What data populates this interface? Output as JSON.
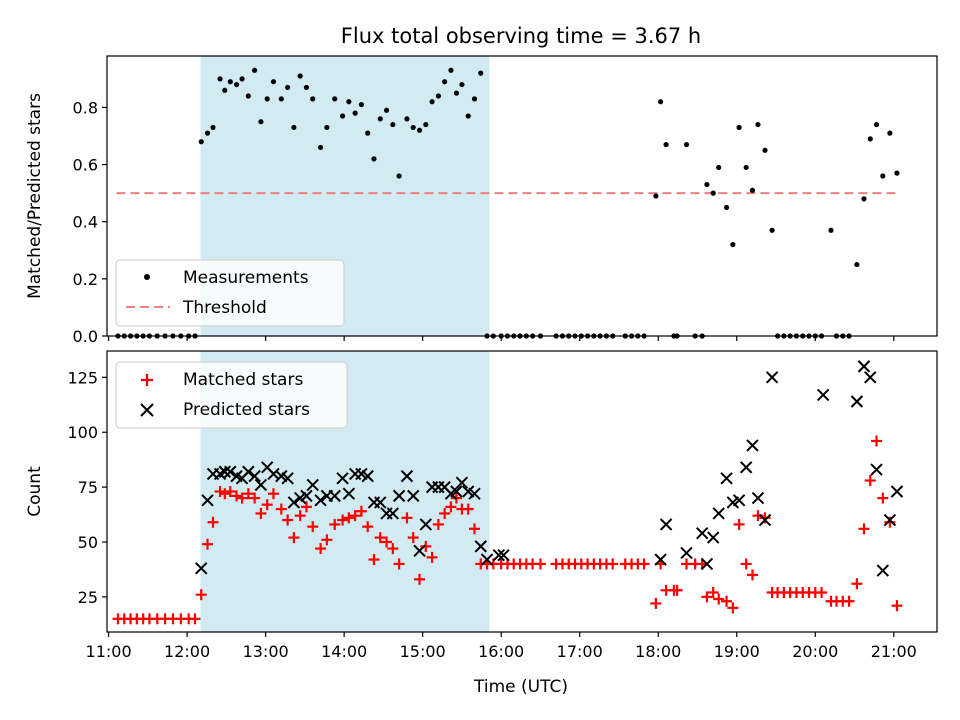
{
  "chart_data": [
    {
      "type": "scatter",
      "title": "Flux total observing time = 3.67 h",
      "xlabel": "",
      "ylabel": "Matched/Predicted stars",
      "x_unit": "hours UTC",
      "xlim": [
        10.98,
        21.55
      ],
      "ylim": [
        0,
        0.98
      ],
      "yticks": [
        0.0,
        0.2,
        0.4,
        0.6,
        0.8
      ],
      "ytick_labels": [
        "0.0",
        "0.2",
        "0.4",
        "0.6",
        "0.8"
      ],
      "xticks": [
        11,
        12,
        13,
        14,
        15,
        16,
        17,
        18,
        19,
        20,
        21
      ],
      "xtick_labels": [
        "11:00",
        "12:00",
        "13:00",
        "14:00",
        "15:00",
        "16:00",
        "17:00",
        "18:00",
        "19:00",
        "20:00",
        "21:00"
      ],
      "shaded_span": [
        12.17,
        15.85
      ],
      "shade_color": "#add8e6",
      "legend": {
        "position": "lower-left",
        "entries": [
          "Measurements",
          "Threshold"
        ]
      },
      "threshold": {
        "name": "Threshold",
        "value": 0.5,
        "x": [
          11.1,
          21.05
        ],
        "color": "#f08080"
      },
      "series": [
        {
          "name": "Measurements",
          "color": "#000000",
          "x": [
            11.12,
            11.2,
            11.28,
            11.36,
            11.44,
            11.52,
            11.62,
            11.72,
            11.82,
            11.92,
            12.02,
            12.1,
            12.18,
            12.26,
            12.33,
            12.42,
            12.48,
            12.55,
            12.63,
            12.7,
            12.78,
            12.86,
            12.94,
            13.02,
            13.1,
            13.2,
            13.28,
            13.36,
            13.44,
            13.52,
            13.6,
            13.7,
            13.78,
            13.88,
            13.98,
            14.06,
            14.14,
            14.22,
            14.3,
            14.38,
            14.46,
            14.54,
            14.62,
            14.7,
            14.8,
            14.88,
            14.96,
            15.04,
            15.12,
            15.2,
            15.28,
            15.36,
            15.43,
            15.5,
            15.58,
            15.66,
            15.74,
            15.82,
            15.9,
            16.0,
            16.08,
            16.16,
            16.24,
            16.32,
            16.4,
            16.5,
            16.7,
            16.78,
            16.86,
            16.94,
            17.02,
            17.1,
            17.18,
            17.26,
            17.34,
            17.42,
            17.58,
            17.66,
            17.74,
            17.82,
            17.97,
            18.03,
            18.1,
            18.2,
            18.24,
            18.36,
            18.47,
            18.56,
            18.62,
            18.7,
            18.77,
            18.87,
            18.95,
            19.03,
            19.12,
            19.2,
            19.27,
            19.36,
            19.45,
            19.52,
            19.6,
            19.68,
            19.76,
            19.84,
            19.92,
            20.0,
            20.08,
            20.2,
            20.27,
            20.35,
            20.43,
            20.53,
            20.62,
            20.7,
            20.78,
            20.86,
            20.95,
            21.04
          ],
          "values": [
            0.0,
            0.0,
            0.0,
            0.0,
            0.0,
            0.0,
            0.0,
            0.0,
            0.0,
            0.0,
            0.0,
            0.0,
            0.68,
            0.71,
            0.73,
            0.9,
            0.86,
            0.89,
            0.88,
            0.9,
            0.84,
            0.93,
            0.75,
            0.83,
            0.89,
            0.83,
            0.87,
            0.73,
            0.91,
            0.87,
            0.83,
            0.66,
            0.73,
            0.83,
            0.77,
            0.82,
            0.78,
            0.81,
            0.71,
            0.62,
            0.76,
            0.79,
            0.74,
            0.56,
            0.76,
            0.73,
            0.72,
            0.74,
            0.82,
            0.84,
            0.89,
            0.93,
            0.85,
            0.88,
            0.77,
            0.83,
            0.92,
            0.0,
            0.0,
            0.0,
            0.0,
            0.0,
            0.0,
            0.0,
            0.0,
            0.0,
            0.0,
            0.0,
            0.0,
            0.0,
            0.0,
            0.0,
            0.0,
            0.0,
            0.0,
            0.0,
            0.0,
            0.0,
            0.0,
            0.0,
            0.49,
            0.82,
            0.67,
            0.0,
            0.0,
            0.67,
            0.0,
            0.0,
            0.53,
            0.5,
            0.59,
            0.45,
            0.32,
            0.73,
            0.59,
            0.51,
            0.74,
            0.65,
            0.37,
            0.0,
            0.0,
            0.0,
            0.0,
            0.0,
            0.0,
            0.0,
            0.0,
            0.37,
            0.0,
            0.0,
            0.0,
            0.25,
            0.48,
            0.69,
            0.74,
            0.56,
            0.71,
            0.57
          ]
        }
      ]
    },
    {
      "type": "scatter",
      "title": "",
      "xlabel": "Time (UTC)",
      "ylabel": "Count",
      "x_unit": "hours UTC",
      "xlim": [
        10.98,
        21.55
      ],
      "ylim": [
        9,
        137
      ],
      "yticks": [
        25,
        50,
        75,
        100,
        125
      ],
      "ytick_labels": [
        "25",
        "50",
        "75",
        "100",
        "125"
      ],
      "xticks": [
        11,
        12,
        13,
        14,
        15,
        16,
        17,
        18,
        19,
        20,
        21
      ],
      "xtick_labels": [
        "11:00",
        "12:00",
        "13:00",
        "14:00",
        "15:00",
        "16:00",
        "17:00",
        "18:00",
        "19:00",
        "20:00",
        "21:00"
      ],
      "shaded_span": [
        12.17,
        15.85
      ],
      "shade_color": "#add8e6",
      "legend": {
        "position": "top-left",
        "entries": [
          "Matched stars",
          "Predicted stars"
        ]
      },
      "series": [
        {
          "name": "Matched stars",
          "marker": "plus",
          "color": "#ff0000",
          "x": [
            11.12,
            11.2,
            11.28,
            11.36,
            11.44,
            11.52,
            11.62,
            11.72,
            11.82,
            11.92,
            12.02,
            12.1,
            12.18,
            12.26,
            12.33,
            12.42,
            12.48,
            12.55,
            12.63,
            12.7,
            12.78,
            12.86,
            12.94,
            13.02,
            13.1,
            13.2,
            13.28,
            13.36,
            13.44,
            13.52,
            13.6,
            13.7,
            13.78,
            13.88,
            13.98,
            14.06,
            14.14,
            14.22,
            14.3,
            14.38,
            14.46,
            14.54,
            14.62,
            14.7,
            14.8,
            14.88,
            14.96,
            15.04,
            15.12,
            15.2,
            15.28,
            15.36,
            15.43,
            15.5,
            15.58,
            15.66,
            15.74,
            15.82,
            15.9,
            16.0,
            16.08,
            16.16,
            16.24,
            16.32,
            16.4,
            16.5,
            16.7,
            16.78,
            16.86,
            16.94,
            17.02,
            17.1,
            17.18,
            17.26,
            17.34,
            17.42,
            17.58,
            17.66,
            17.74,
            17.82,
            17.97,
            18.03,
            18.1,
            18.2,
            18.24,
            18.36,
            18.47,
            18.56,
            18.62,
            18.7,
            18.77,
            18.87,
            18.95,
            19.03,
            19.12,
            19.2,
            19.27,
            19.36,
            19.45,
            19.52,
            19.6,
            19.68,
            19.76,
            19.84,
            19.92,
            20.0,
            20.08,
            20.2,
            20.27,
            20.35,
            20.43,
            20.53,
            20.62,
            20.7,
            20.78,
            20.86,
            20.95,
            21.04
          ],
          "values": [
            15,
            15,
            15,
            15,
            15,
            15,
            15,
            15,
            15,
            15,
            15,
            15,
            26,
            49,
            59,
            73,
            72,
            73,
            71,
            70,
            72,
            70,
            63,
            67,
            72,
            65,
            60,
            52,
            62,
            66,
            57,
            47,
            51,
            58,
            60,
            61,
            62,
            64,
            57,
            42,
            52,
            50,
            47,
            40,
            61,
            52,
            33,
            48,
            43,
            58,
            63,
            66,
            70,
            65,
            65,
            56,
            40,
            40,
            40,
            40,
            40,
            40,
            40,
            40,
            40,
            40,
            40,
            40,
            40,
            40,
            40,
            40,
            40,
            40,
            40,
            40,
            40,
            40,
            40,
            40,
            22,
            40,
            28,
            28,
            28,
            40,
            40,
            40,
            25,
            27,
            24,
            23,
            20,
            58,
            40,
            35,
            62,
            61,
            27,
            27,
            27,
            27,
            27,
            27,
            27,
            27,
            27,
            23,
            23,
            23,
            23,
            31,
            56,
            78,
            96,
            70,
            59,
            21
          ]
        },
        {
          "name": "Predicted stars",
          "marker": "x",
          "color": "#000000",
          "x": [
            12.18,
            12.26,
            12.33,
            12.42,
            12.48,
            12.55,
            12.63,
            12.7,
            12.78,
            12.86,
            12.94,
            13.02,
            13.1,
            13.2,
            13.28,
            13.36,
            13.44,
            13.52,
            13.6,
            13.7,
            13.78,
            13.88,
            13.98,
            14.06,
            14.14,
            14.22,
            14.3,
            14.38,
            14.46,
            14.54,
            14.62,
            14.7,
            14.8,
            14.88,
            14.96,
            15.04,
            15.12,
            15.2,
            15.28,
            15.36,
            15.43,
            15.5,
            15.58,
            15.66,
            15.74,
            15.82,
            15.97,
            16.03,
            18.03,
            18.1,
            18.36,
            18.56,
            18.62,
            18.7,
            18.77,
            18.87,
            18.95,
            19.03,
            19.12,
            19.2,
            19.27,
            19.36,
            19.45,
            20.1,
            20.53,
            20.62,
            20.7,
            20.78,
            20.86,
            20.95,
            21.04
          ],
          "values": [
            38,
            69,
            81,
            81,
            82,
            82,
            80,
            79,
            82,
            80,
            76,
            84,
            81,
            80,
            79,
            68,
            70,
            71,
            76,
            69,
            71,
            71,
            79,
            72,
            81,
            81,
            80,
            68,
            68,
            63,
            63,
            71,
            80,
            71,
            46,
            58,
            75,
            75,
            75,
            72,
            73,
            77,
            73,
            72,
            48,
            42,
            44,
            44,
            42,
            58,
            45,
            54,
            40,
            52,
            63,
            79,
            68,
            69,
            84,
            94,
            70,
            60,
            125,
            117,
            114,
            130,
            125,
            83,
            37,
            60,
            73
          ]
        }
      ]
    }
  ]
}
